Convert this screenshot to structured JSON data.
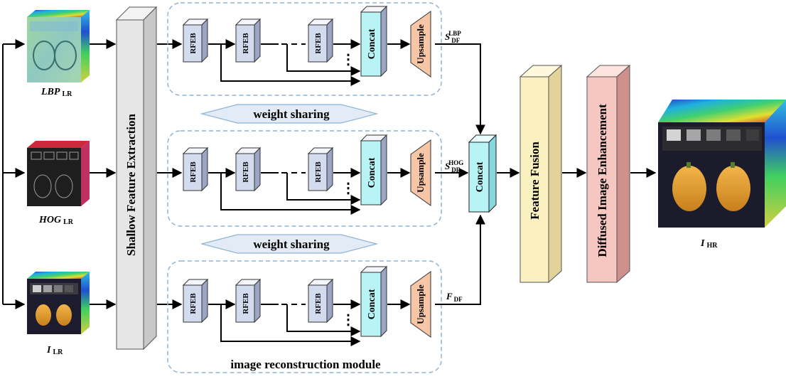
{
  "inputs": {
    "lbp": {
      "main": "LBP",
      "sub": "LR"
    },
    "hog": {
      "main": "HOG",
      "sub": "LR"
    },
    "img": {
      "main": "I",
      "sub": "LR"
    }
  },
  "output": {
    "main": "I",
    "sub": "HR"
  },
  "shallow_label": "Shallow Feature Extraction",
  "branch": {
    "rfeb_label": "RFEB",
    "concat_label": "Concat",
    "upsample_label": "Upsample",
    "dots": "⋮"
  },
  "outputs": {
    "lbp": {
      "main": "S",
      "sub": "DF",
      "sup": "LBP"
    },
    "hog": {
      "main": "S",
      "sub": "DF",
      "sup": "HOG"
    },
    "img": {
      "main": "F",
      "sub": "DF"
    }
  },
  "weight_sharing_label": "weight sharing",
  "module_label": "image reconstruction module",
  "concat_main_label": "Concat",
  "fusion_label": "Feature Fusion",
  "enhance_label": "Diffused Image Enhancement",
  "colors": {
    "rfeb": "#d3dcee",
    "concat": "#b8f3f6",
    "upsample": "#f6c6a6",
    "shallow": "#e6e6e6",
    "fusion": "#fbf0bf",
    "enhance": "#f6c6c0",
    "dashed": "#8fb4d6"
  }
}
